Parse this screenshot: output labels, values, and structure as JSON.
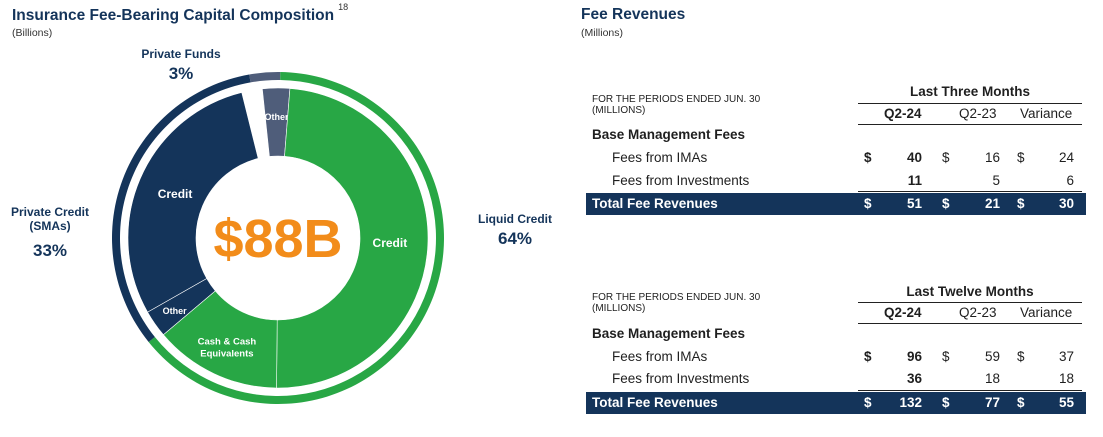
{
  "left": {
    "title": "Insurance Fee-Bearing Capital Composition",
    "footnote": "18",
    "unit": "(Billions)",
    "center_label": "$88B",
    "callouts": {
      "private_funds": {
        "label": "Private Funds",
        "pct": "3%"
      },
      "private_credit": {
        "label_line1": "Private Credit",
        "label_line2": "(SMAs)",
        "pct": "33%"
      },
      "liquid_credit": {
        "label": "Liquid Credit",
        "pct": "64%"
      }
    },
    "segment_labels": {
      "credit_green": "Credit",
      "cash": "Cash & Cash",
      "cash2": "Equivalents",
      "credit_navy": "Credit",
      "other_top": "Other",
      "other_bottom": "Other"
    }
  },
  "chart_data": {
    "type": "pie",
    "title": "Insurance Fee-Bearing Capital Composition",
    "center": "$88B",
    "outer_ring": [
      {
        "name": "Private Funds",
        "value": 3,
        "color": "#4f5d7a"
      },
      {
        "name": "Liquid Credit",
        "value": 64,
        "color": "#28a745"
      },
      {
        "name": "Private Credit (SMAs)",
        "value": 33,
        "color": "#14345a"
      }
    ],
    "inner_ring": [
      {
        "name": "Other",
        "value": 3,
        "color": "#4f5d7a"
      },
      {
        "name": "Credit",
        "value": 50,
        "color": "#28a745"
      },
      {
        "name": "Cash & Cash Equivalents",
        "value": 14,
        "color": "#28a745"
      },
      {
        "name": "Other",
        "value": 3,
        "color": "#14345a"
      },
      {
        "name": "Credit",
        "value": 30,
        "color": "#14345a"
      }
    ]
  },
  "right": {
    "title": "Fee Revenues",
    "unit": "(Millions)",
    "tables": [
      {
        "note_line1": "FOR THE PERIODS ENDED JUN. 30",
        "note_line2": "(MILLIONS)",
        "period": "Last Three Months",
        "cols": [
          "Q2-24",
          "Q2-23",
          "Variance"
        ],
        "section": "Base Management Fees",
        "rows": [
          {
            "label": "Fees from IMAs",
            "cur": "$",
            "v": [
              "40",
              "16",
              "24"
            ]
          },
          {
            "label": "Fees from Investments",
            "cur": "",
            "v": [
              "11",
              "5",
              "6"
            ]
          }
        ],
        "total": {
          "label": "Total Fee Revenues",
          "cur": "$",
          "v": [
            "51",
            "21",
            "30"
          ]
        }
      },
      {
        "note_line1": "FOR THE PERIODS ENDED JUN. 30",
        "note_line2": "(MILLIONS)",
        "period": "Last Twelve Months",
        "cols": [
          "Q2-24",
          "Q2-23",
          "Variance"
        ],
        "section": "Base Management Fees",
        "rows": [
          {
            "label": "Fees from IMAs",
            "cur": "$",
            "v": [
              "96",
              "59",
              "37"
            ]
          },
          {
            "label": "Fees from Investments",
            "cur": "",
            "v": [
              "36",
              "18",
              "18"
            ]
          }
        ],
        "total": {
          "label": "Total Fee Revenues",
          "cur": "$",
          "v": [
            "132",
            "77",
            "55"
          ]
        }
      }
    ]
  }
}
